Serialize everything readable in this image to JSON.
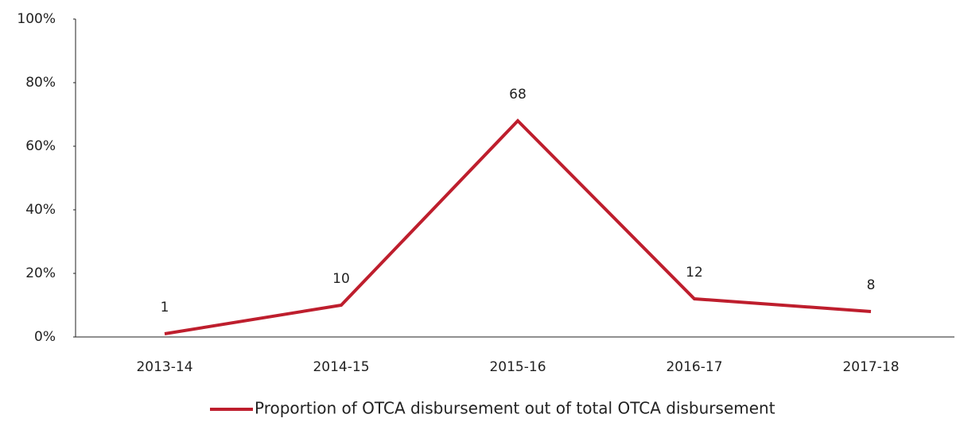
{
  "chart_data": {
    "type": "line",
    "categories": [
      "2013-14",
      "2014-15",
      "2015-16",
      "2016-17",
      "2017-18"
    ],
    "series": [
      {
        "name": "Proportion of OTCA disbursement out of total OTCA disbursement",
        "color": "#be1e2d",
        "values": [
          1,
          10,
          68,
          12,
          8
        ]
      }
    ],
    "ylim": [
      0,
      100
    ],
    "yticks": [
      {
        "value": 0,
        "label": "0%"
      },
      {
        "value": 20,
        "label": "20%"
      },
      {
        "value": 40,
        "label": "40%"
      },
      {
        "value": 60,
        "label": "60%"
      },
      {
        "value": 80,
        "label": "80%"
      },
      {
        "value": 100,
        "label": "100%"
      }
    ],
    "grid": false,
    "legend": "bottom"
  }
}
